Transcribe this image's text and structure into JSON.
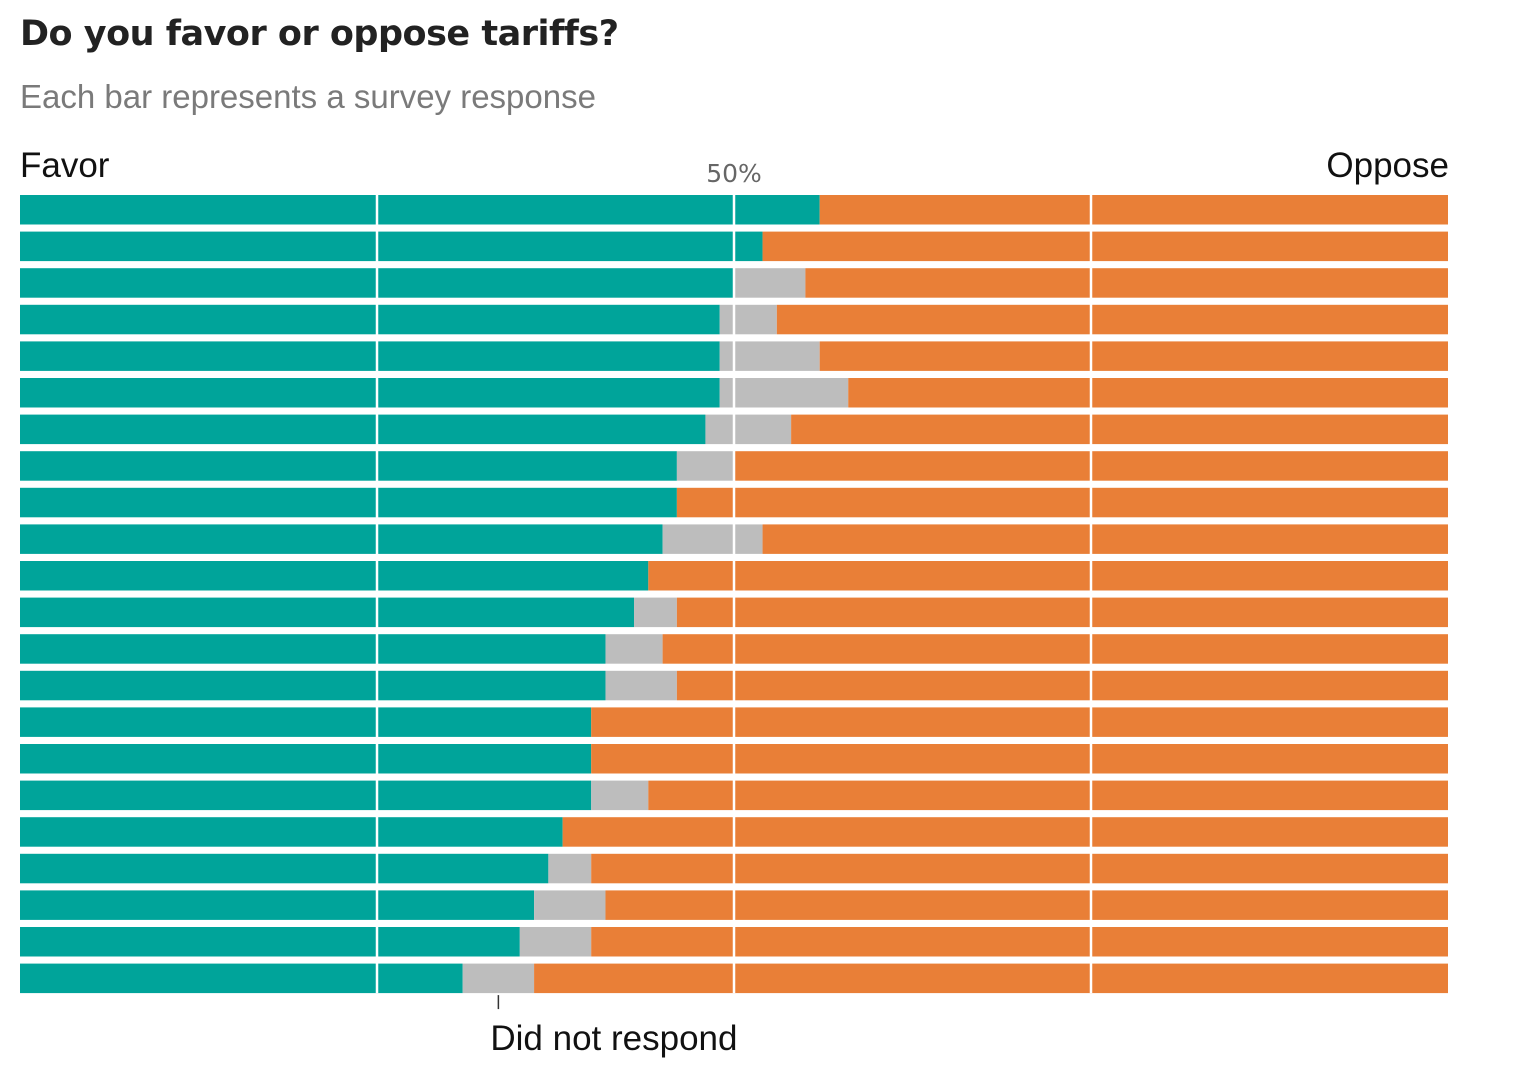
{
  "title": "Do you favor or oppose tariffs?",
  "subtitle": "Each bar represents a survey response",
  "left_label": "Favor",
  "right_label": "Oppose",
  "midpoint_label": "50%",
  "callout_label": "Did not respond",
  "colors": {
    "favor": "#00a49a",
    "no_response": "#bdbdbd",
    "oppose": "#e97f37",
    "gridline": "#ffffff"
  },
  "chart_data": {
    "type": "bar",
    "orientation": "horizontal",
    "stacked": true,
    "normalized": true,
    "xlim": [
      0,
      100
    ],
    "gridlines": [
      25,
      50,
      75
    ],
    "gridline_labels": [
      {
        "value": 50,
        "text": "50%"
      }
    ],
    "series": [
      {
        "key": "favor",
        "label": "Favor",
        "values": [
          56,
          52,
          50,
          49,
          49,
          49,
          48,
          46,
          46,
          45,
          44,
          43,
          41,
          41,
          40,
          40,
          40,
          38,
          37,
          36,
          35,
          31
        ]
      },
      {
        "key": "no_response",
        "label": "Did not respond",
        "values": [
          0,
          0,
          5,
          4,
          7,
          9,
          6,
          4,
          0,
          7,
          0,
          3,
          4,
          5,
          0,
          0,
          4,
          0,
          3,
          5,
          5,
          5
        ]
      },
      {
        "key": "oppose",
        "label": "Oppose",
        "values": [
          44,
          48,
          45,
          47,
          44,
          42,
          46,
          50,
          54,
          48,
          56,
          54,
          55,
          54,
          60,
          60,
          56,
          62,
          60,
          59,
          60,
          64
        ]
      }
    ],
    "annotations": [
      {
        "text": "Did not respond",
        "points_to": "last bar, no-response segment"
      }
    ]
  }
}
